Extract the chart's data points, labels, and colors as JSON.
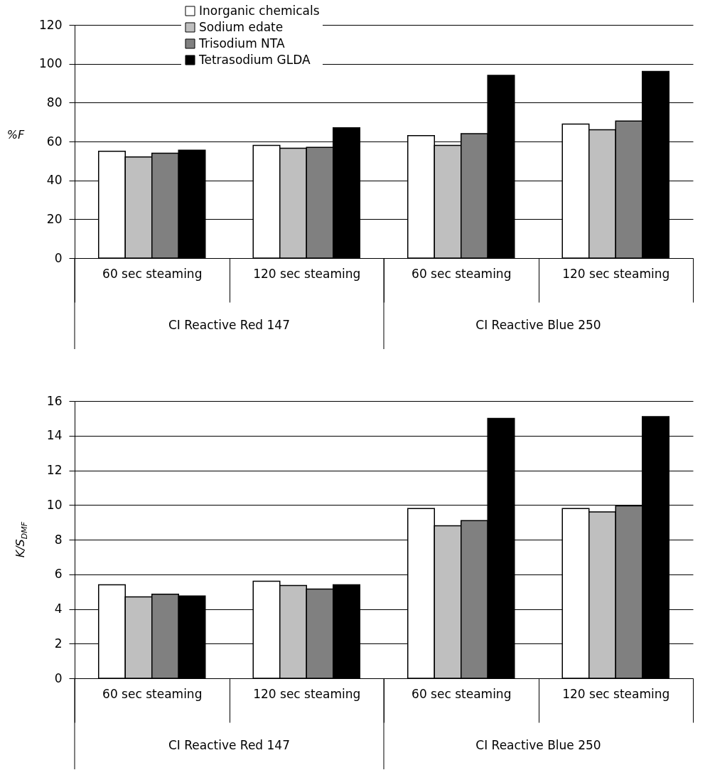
{
  "chart_data": [
    {
      "type": "bar",
      "ylabel": "%F",
      "categories": [
        "60 sec steaming",
        "120 sec steaming",
        "60 sec steaming",
        "120 sec steaming"
      ],
      "annotations": [
        "CI Reactive Red 147",
        "CI Reactive Blue 250"
      ],
      "ylim": [
        0,
        120
      ],
      "yticks": [
        0,
        20,
        40,
        60,
        80,
        100,
        120
      ],
      "grid": "y",
      "legend": "top",
      "series": [
        {
          "name": "Inorganic chemicals",
          "color": "#ffffff",
          "values": [
            55,
            58,
            63,
            69
          ]
        },
        {
          "name": "Sodium edate",
          "color": "#bfbfbf",
          "values": [
            52,
            56.5,
            58,
            66
          ]
        },
        {
          "name": "Trisodium NTA",
          "color": "#808080",
          "values": [
            54,
            57,
            64,
            70.5
          ]
        },
        {
          "name": "Tetrasodium GLDA",
          "color": "#000000",
          "values": [
            55.5,
            67,
            94,
            96
          ]
        }
      ]
    },
    {
      "type": "bar",
      "ylabel": "K/S$_{DMF}$",
      "categories": [
        "60 sec steaming",
        "120 sec steaming",
        "60 sec steaming",
        "120 sec steaming"
      ],
      "annotations": [
        "CI Reactive Red 147",
        "CI Reactive Blue 250"
      ],
      "ylim": [
        0,
        16
      ],
      "yticks": [
        0,
        2,
        4,
        6,
        8,
        10,
        12,
        14,
        16
      ],
      "grid": "y",
      "series": [
        {
          "color": "#ffffff",
          "values": [
            5.4,
            5.6,
            9.8,
            9.8
          ]
        },
        {
          "color": "#bfbfbf",
          "values": [
            4.7,
            5.35,
            8.8,
            9.6
          ]
        },
        {
          "color": "#808080",
          "values": [
            4.85,
            5.15,
            9.1,
            9.95
          ]
        },
        {
          "color": "#000000",
          "values": [
            4.75,
            5.4,
            15,
            15.1
          ]
        }
      ]
    }
  ]
}
